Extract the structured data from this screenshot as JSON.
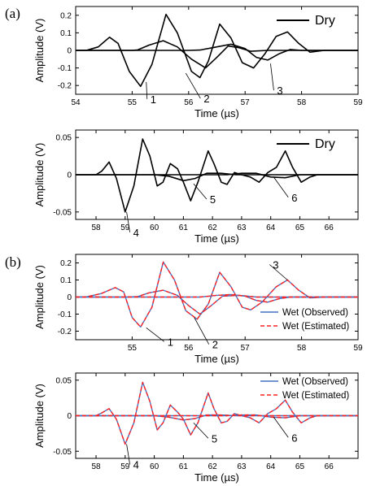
{
  "panel_labels": [
    "(a)",
    "(b)"
  ],
  "chart_data": [
    {
      "type": "line",
      "panel": "(a)",
      "xlabel": "Time (µs)",
      "ylabel": "Amplitude (V)",
      "xlim": [
        54,
        59
      ],
      "ylim": [
        -0.25,
        0.25
      ],
      "xticks": [
        "54",
        "55",
        "56",
        "57",
        "58",
        "59"
      ],
      "yticks": [
        "0.2",
        "0.1",
        "0",
        "-0.1",
        "-0.2"
      ],
      "legend": [
        {
          "name": "Dry",
          "color": "#000000",
          "style": "solid"
        }
      ],
      "legend_position": "top-right",
      "annotations": [
        "1",
        "2",
        "3"
      ],
      "series": [
        {
          "label": "1",
          "color": "#000000",
          "points": [
            [
              54,
              0
            ],
            [
              54.2,
              0.001
            ],
            [
              54.4,
              0.02
            ],
            [
              54.6,
              0.075
            ],
            [
              54.75,
              0.04
            ],
            [
              54.95,
              -0.12
            ],
            [
              55.15,
              -0.205
            ],
            [
              55.35,
              -0.08
            ],
            [
              55.6,
              0.205
            ],
            [
              55.8,
              0.1
            ],
            [
              56.05,
              -0.12
            ],
            [
              56.2,
              -0.155
            ],
            [
              56.35,
              -0.06
            ],
            [
              56.55,
              0.15
            ],
            [
              56.75,
              0.07
            ],
            [
              56.95,
              -0.07
            ],
            [
              57.15,
              -0.1
            ],
            [
              57.35,
              -0.02
            ],
            [
              57.55,
              0.08
            ],
            [
              57.75,
              0.105
            ],
            [
              57.95,
              0.04
            ],
            [
              58.15,
              -0.01
            ],
            [
              58.4,
              0
            ],
            [
              59,
              0
            ]
          ]
        },
        {
          "label": "2",
          "color": "#000000",
          "points": [
            [
              54,
              0
            ],
            [
              55,
              0
            ],
            [
              55.1,
              0.003
            ],
            [
              55.3,
              0.03
            ],
            [
              55.55,
              0.055
            ],
            [
              55.8,
              0.02
            ],
            [
              56.05,
              -0.05
            ],
            [
              56.3,
              -0.1
            ],
            [
              56.5,
              -0.04
            ],
            [
              56.7,
              0.025
            ],
            [
              56.9,
              0.015
            ],
            [
              57.1,
              -0.005
            ],
            [
              57.4,
              0
            ],
            [
              59,
              0
            ]
          ]
        },
        {
          "label": "3",
          "color": "#000000",
          "points": [
            [
              54,
              0
            ],
            [
              56,
              0
            ],
            [
              56.2,
              0.002
            ],
            [
              56.5,
              0.02
            ],
            [
              56.75,
              0.035
            ],
            [
              57.0,
              0.01
            ],
            [
              57.2,
              -0.04
            ],
            [
              57.4,
              -0.055
            ],
            [
              57.6,
              -0.02
            ],
            [
              57.8,
              0.005
            ],
            [
              58,
              0
            ],
            [
              59,
              0
            ]
          ]
        }
      ]
    },
    {
      "type": "line",
      "panel": "(a)",
      "xlabel": "Time (µs)",
      "ylabel": "Amplitude (V)",
      "xlim": [
        57.3,
        67
      ],
      "ylim": [
        -0.06,
        0.06
      ],
      "xticks": [
        "58",
        "59",
        "60",
        "61",
        "62",
        "63",
        "64",
        "65",
        "66"
      ],
      "yticks": [
        "0.05",
        "0",
        "-0.05"
      ],
      "legend": [
        {
          "name": "Dry",
          "color": "#000000",
          "style": "solid"
        }
      ],
      "legend_position": "top-right",
      "annotations": [
        "4",
        "5",
        "6"
      ],
      "series": [
        {
          "label": "4",
          "color": "#000000",
          "points": [
            [
              57.3,
              0
            ],
            [
              58,
              0
            ],
            [
              58.2,
              0.005
            ],
            [
              58.45,
              0.017
            ],
            [
              58.7,
              -0.005
            ],
            [
              59.0,
              -0.05
            ],
            [
              59.3,
              -0.015
            ],
            [
              59.6,
              0.048
            ],
            [
              59.85,
              0.025
            ],
            [
              60.1,
              -0.015
            ],
            [
              60.3,
              -0.01
            ],
            [
              60.55,
              0.015
            ],
            [
              60.8,
              0.008
            ],
            [
              61.0,
              -0.01
            ],
            [
              61.25,
              -0.035
            ],
            [
              61.5,
              -0.01
            ],
            [
              61.85,
              0.032
            ],
            [
              62.05,
              0.015
            ],
            [
              62.3,
              -0.01
            ],
            [
              62.5,
              -0.013
            ],
            [
              62.75,
              0.003
            ],
            [
              63.0,
              0
            ],
            [
              63.3,
              -0.003
            ],
            [
              63.6,
              -0.01
            ],
            [
              63.9,
              0.003
            ],
            [
              64.2,
              0.01
            ],
            [
              64.5,
              0.032
            ],
            [
              64.75,
              0.01
            ],
            [
              65.05,
              -0.01
            ],
            [
              65.35,
              -0.003
            ],
            [
              65.6,
              0
            ],
            [
              67,
              0
            ]
          ]
        },
        {
          "label": "5",
          "color": "#000000",
          "points": [
            [
              57.3,
              0
            ],
            [
              60,
              0
            ],
            [
              60.5,
              -0.002
            ],
            [
              61.0,
              -0.008
            ],
            [
              61.4,
              -0.005
            ],
            [
              61.8,
              0.002
            ],
            [
              62.3,
              0.002
            ],
            [
              62.8,
              0
            ],
            [
              67,
              0
            ]
          ]
        },
        {
          "label": "6",
          "color": "#000000",
          "points": [
            [
              57.3,
              0
            ],
            [
              62.5,
              0
            ],
            [
              63.0,
              0.002
            ],
            [
              63.5,
              0.002
            ],
            [
              64.0,
              -0.003
            ],
            [
              64.5,
              -0.004
            ],
            [
              65.0,
              0
            ],
            [
              67,
              0
            ]
          ]
        }
      ]
    },
    {
      "type": "line",
      "panel": "(b)",
      "xlabel": "Time (µs)",
      "ylabel": "Amplitude (V)",
      "xlim": [
        54,
        59
      ],
      "ylim": [
        -0.25,
        0.25
      ],
      "xticks": [
        "55",
        "56",
        "57",
        "58",
        "59"
      ],
      "yticks": [
        "0.2",
        "0.1",
        "0",
        "-0.1",
        "-0.2"
      ],
      "legend": [
        {
          "name": "Wet (Observed)",
          "color": "#4472C4",
          "style": "solid"
        },
        {
          "name": "Wet (Estimated)",
          "color": "#FF2020",
          "style": "dashed"
        }
      ],
      "legend_position": "bottom-right",
      "annotations": [
        "1",
        "2",
        "3"
      ],
      "series": [
        {
          "label": "1",
          "points": [
            [
              54,
              0
            ],
            [
              54.2,
              0.002
            ],
            [
              54.45,
              0.02
            ],
            [
              54.7,
              0.055
            ],
            [
              54.85,
              0.03
            ],
            [
              55.0,
              -0.12
            ],
            [
              55.15,
              -0.175
            ],
            [
              55.35,
              -0.06
            ],
            [
              55.55,
              0.205
            ],
            [
              55.75,
              0.1
            ],
            [
              55.95,
              -0.08
            ],
            [
              56.15,
              -0.13
            ],
            [
              56.35,
              -0.04
            ],
            [
              56.55,
              0.145
            ],
            [
              56.75,
              0.06
            ],
            [
              56.95,
              -0.06
            ],
            [
              57.1,
              -0.075
            ],
            [
              57.3,
              -0.03
            ],
            [
              57.55,
              0.06
            ],
            [
              57.75,
              0.1
            ],
            [
              57.95,
              0.04
            ],
            [
              58.15,
              -0.005
            ],
            [
              58.4,
              0
            ],
            [
              59,
              0
            ]
          ]
        },
        {
          "label": "2",
          "points": [
            [
              54,
              0
            ],
            [
              54.9,
              0
            ],
            [
              55.1,
              0.003
            ],
            [
              55.3,
              0.025
            ],
            [
              55.55,
              0.04
            ],
            [
              55.8,
              0.01
            ],
            [
              56.0,
              -0.05
            ],
            [
              56.2,
              -0.1
            ],
            [
              56.4,
              -0.05
            ],
            [
              56.6,
              0.005
            ],
            [
              56.9,
              0.01
            ],
            [
              57.2,
              0
            ],
            [
              59,
              0
            ]
          ]
        },
        {
          "label": "3",
          "points": [
            [
              54,
              0
            ],
            [
              56.2,
              0
            ],
            [
              56.5,
              0.01
            ],
            [
              56.75,
              0.015
            ],
            [
              57.0,
              0.005
            ],
            [
              57.2,
              -0.02
            ],
            [
              57.4,
              -0.03
            ],
            [
              57.6,
              -0.01
            ],
            [
              57.8,
              0
            ],
            [
              59,
              0
            ]
          ]
        }
      ]
    },
    {
      "type": "line",
      "panel": "(b)",
      "xlabel": "Time (µs)",
      "ylabel": "Amplitude (V)",
      "xlim": [
        57.3,
        67
      ],
      "ylim": [
        -0.06,
        0.06
      ],
      "xticks": [
        "58",
        "59",
        "60",
        "61",
        "62",
        "63",
        "64",
        "65",
        "66"
      ],
      "yticks": [
        "0.05",
        "0",
        "-0.05"
      ],
      "legend": [
        {
          "name": "Wet (Observed)",
          "color": "#4472C4",
          "style": "solid"
        },
        {
          "name": "Wet (Estimated)",
          "color": "#FF2020",
          "style": "dashed"
        }
      ],
      "legend_position": "top-right",
      "annotations": [
        "4",
        "5",
        "6"
      ],
      "series": [
        {
          "label": "4",
          "points": [
            [
              57.3,
              0
            ],
            [
              58,
              0
            ],
            [
              58.2,
              0.004
            ],
            [
              58.45,
              0.01
            ],
            [
              58.7,
              -0.005
            ],
            [
              59.0,
              -0.04
            ],
            [
              59.3,
              -0.01
            ],
            [
              59.6,
              0.047
            ],
            [
              59.85,
              0.02
            ],
            [
              60.1,
              -0.02
            ],
            [
              60.3,
              -0.01
            ],
            [
              60.55,
              0.015
            ],
            [
              60.8,
              0.005
            ],
            [
              61.0,
              -0.005
            ],
            [
              61.25,
              -0.027
            ],
            [
              61.5,
              -0.01
            ],
            [
              61.85,
              0.032
            ],
            [
              62.05,
              0.01
            ],
            [
              62.3,
              -0.01
            ],
            [
              62.5,
              -0.008
            ],
            [
              62.75,
              0.003
            ],
            [
              63.0,
              0
            ],
            [
              63.3,
              -0.003
            ],
            [
              63.6,
              -0.01
            ],
            [
              63.9,
              0.003
            ],
            [
              64.2,
              0.01
            ],
            [
              64.5,
              0.022
            ],
            [
              64.75,
              0.005
            ],
            [
              65.05,
              -0.01
            ],
            [
              65.35,
              -0.003
            ],
            [
              65.6,
              0
            ],
            [
              67,
              0
            ]
          ]
        },
        {
          "label": "5",
          "points": [
            [
              57.3,
              0
            ],
            [
              60,
              0
            ],
            [
              60.5,
              -0.002
            ],
            [
              61.0,
              -0.006
            ],
            [
              61.4,
              -0.004
            ],
            [
              61.8,
              0.001
            ],
            [
              62.3,
              0.001
            ],
            [
              62.8,
              0
            ],
            [
              67,
              0
            ]
          ]
        },
        {
          "label": "6",
          "points": [
            [
              57.3,
              0
            ],
            [
              62.5,
              0
            ],
            [
              63.0,
              0.001
            ],
            [
              63.5,
              0.001
            ],
            [
              64.0,
              -0.002
            ],
            [
              64.5,
              -0.003
            ],
            [
              65.0,
              0
            ],
            [
              67,
              0
            ]
          ]
        }
      ]
    }
  ]
}
